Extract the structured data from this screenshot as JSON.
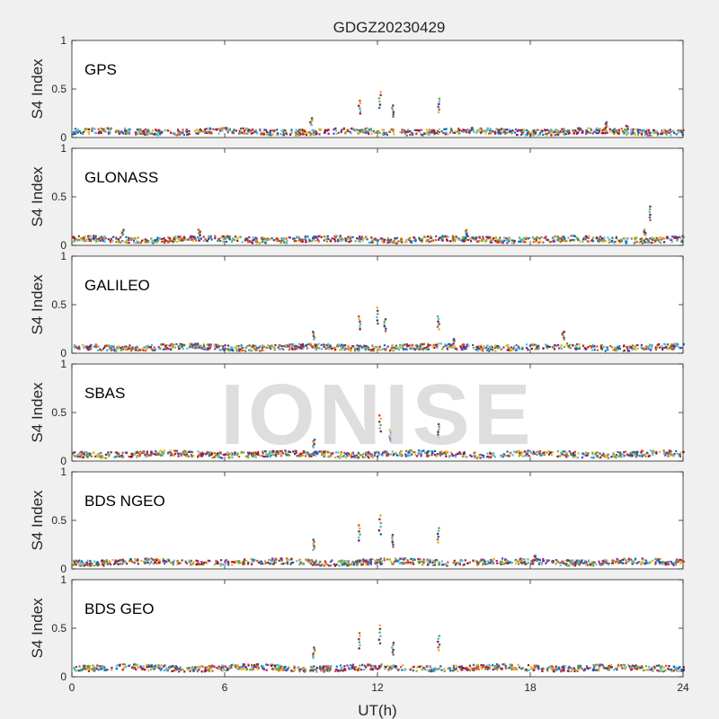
{
  "chart_data": {
    "type": "scatter",
    "title": "GDGZ20230429",
    "xlabel": "UT(h)",
    "ylabel": "S4 Index",
    "xlim": [
      0,
      24
    ],
    "ylim": [
      0,
      1
    ],
    "xticks": [
      0,
      6,
      12,
      18,
      24
    ],
    "yticks": [
      0,
      0.5,
      1
    ],
    "xtick_labels": [
      "0",
      "6",
      "12",
      "18",
      "24"
    ],
    "ytick_labels": [
      "0",
      "0.5",
      "1"
    ],
    "watermark": "IONISE",
    "series_colors": [
      "#0072BD",
      "#D95319",
      "#EDB120",
      "#7E2F8E",
      "#77AC30",
      "#4DBEEE",
      "#A2142F"
    ],
    "panels": [
      {
        "label": "GPS",
        "baseline": 0.07,
        "spikes": [
          [
            9.4,
            0.2
          ],
          [
            11.3,
            0.38
          ],
          [
            12.1,
            0.47
          ],
          [
            12.6,
            0.33
          ],
          [
            14.4,
            0.4
          ],
          [
            21.0,
            0.16
          ],
          [
            21.8,
            0.12
          ]
        ]
      },
      {
        "label": "GLONASS",
        "baseline": 0.07,
        "spikes": [
          [
            2.0,
            0.16
          ],
          [
            5.0,
            0.16
          ],
          [
            15.5,
            0.16
          ],
          [
            22.7,
            0.4
          ],
          [
            22.5,
            0.16
          ]
        ]
      },
      {
        "label": "GALILEO",
        "baseline": 0.07,
        "spikes": [
          [
            9.5,
            0.22
          ],
          [
            11.3,
            0.38
          ],
          [
            12.0,
            0.47
          ],
          [
            12.3,
            0.35
          ],
          [
            14.4,
            0.38
          ],
          [
            15.0,
            0.15
          ],
          [
            19.3,
            0.22
          ]
        ]
      },
      {
        "label": "SBAS",
        "baseline": 0.08,
        "spikes": [
          [
            9.5,
            0.22
          ],
          [
            12.1,
            0.47
          ],
          [
            12.5,
            0.32
          ],
          [
            14.4,
            0.38
          ]
        ]
      },
      {
        "label": "BDS NGEO",
        "baseline": 0.08,
        "spikes": [
          [
            9.5,
            0.3
          ],
          [
            11.3,
            0.45
          ],
          [
            12.1,
            0.55
          ],
          [
            12.6,
            0.35
          ],
          [
            14.4,
            0.42
          ],
          [
            18.2,
            0.14
          ]
        ]
      },
      {
        "label": "BDS GEO",
        "baseline": 0.1,
        "spikes": [
          [
            9.5,
            0.3
          ],
          [
            11.3,
            0.45
          ],
          [
            12.1,
            0.53
          ],
          [
            12.6,
            0.35
          ],
          [
            14.4,
            0.42
          ]
        ]
      }
    ]
  }
}
